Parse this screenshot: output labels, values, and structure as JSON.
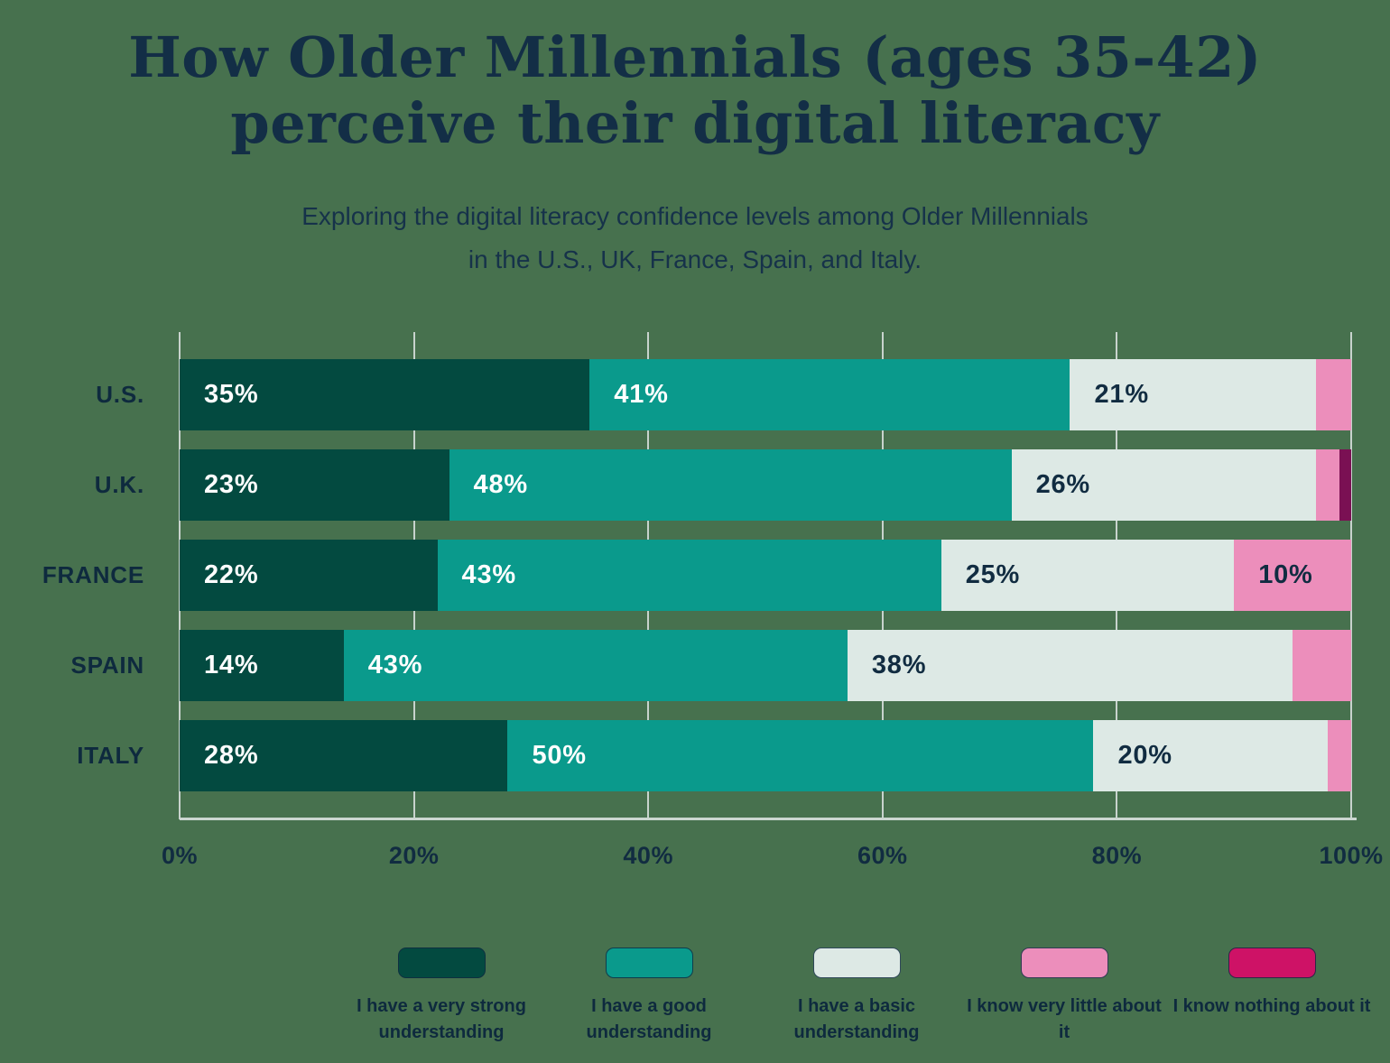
{
  "title": {
    "line1": "How Older Millennials (ages 35-42)",
    "line2": "perceive their digital literacy"
  },
  "subtitle": {
    "line1": "Exploring the digital literacy confidence levels among Older Millennials",
    "line2": "in the U.S., UK, France, Spain, and Italy."
  },
  "colors": {
    "background": "#47714E",
    "text_navy": "#112C41",
    "gridline": "#C8D3CD",
    "axis_line": "#CBD6D0"
  },
  "chart_data": {
    "type": "bar",
    "orientation": "horizontal-stacked",
    "title": "How Older Millennials (ages 35-42) perceive their digital literacy",
    "categories": [
      "U.S.",
      "U.K.",
      "FRANCE",
      "SPAIN",
      "ITALY"
    ],
    "series": [
      {
        "name": "I have a very strong understanding",
        "bar_color": "#034A40",
        "legend_color": "#034A40",
        "label_color": "#FFFFFF",
        "values": [
          35,
          23,
          22,
          14,
          28
        ]
      },
      {
        "name": "I have a good understanding",
        "bar_color": "#0A9A8C",
        "legend_color": "#0A9A8C",
        "label_color": "#FFFFFF",
        "values": [
          41,
          48,
          43,
          43,
          50
        ]
      },
      {
        "name": "I have a basic understanding",
        "bar_color": "#DDE9E5",
        "legend_color": "#DDE9E5",
        "label_color": "#112C41",
        "values": [
          21,
          26,
          25,
          38,
          20
        ]
      },
      {
        "name": "I know very little about it",
        "bar_color": "#EC8EBB",
        "legend_color": "#EC8EBB",
        "label_color": "#112C41",
        "values": [
          3,
          2,
          10,
          5,
          2
        ]
      },
      {
        "name": "I know nothing about it",
        "bar_color": "#7A1053",
        "legend_color": "#CE1266",
        "label_color": "#FFFFFF",
        "values": [
          0,
          1,
          0,
          0,
          0
        ]
      }
    ],
    "x_ticks": [
      "0%",
      "20%",
      "40%",
      "60%",
      "80%",
      "100%"
    ],
    "xlim": [
      0,
      100
    ],
    "value_suffix": "%",
    "label_min_value": 10,
    "grid": true,
    "legend_position": "bottom"
  }
}
